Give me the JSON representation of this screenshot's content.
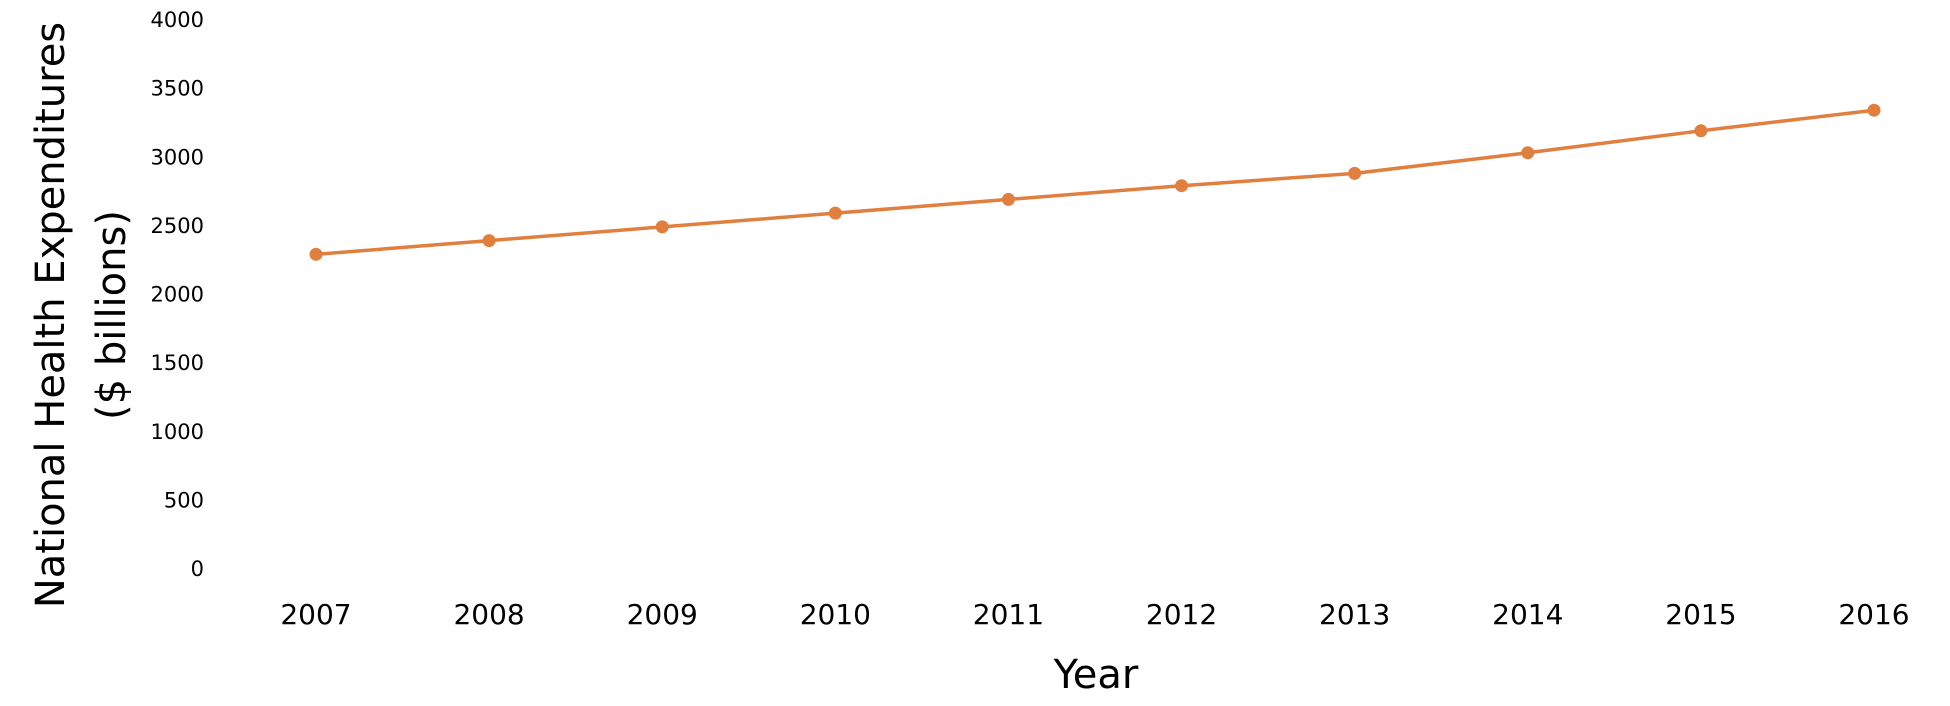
{
  "chart_data": {
    "type": "line",
    "x_label": "Year",
    "y_label": [
      "National Health Expenditures",
      "($ billions)"
    ],
    "categories": [
      "2007",
      "2008",
      "2009",
      "2010",
      "2011",
      "2012",
      "2013",
      "2014",
      "2015",
      "2016"
    ],
    "series": [
      {
        "color": "#e07f3e",
        "values": [
          2300,
          2400,
          2500,
          2600,
          2700,
          2800,
          2890,
          3040,
          3200,
          3350
        ]
      }
    ],
    "ylim": [
      0,
      4000
    ],
    "yticks": [
      0,
      500,
      1000,
      1500,
      2000,
      2500,
      3000,
      3500,
      4000
    ],
    "grid": false
  }
}
